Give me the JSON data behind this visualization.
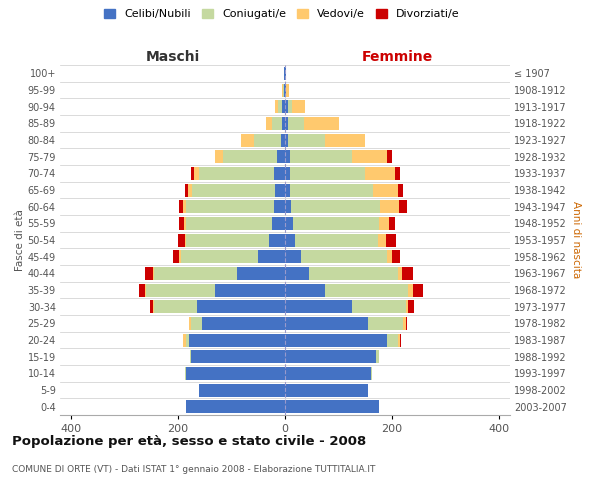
{
  "age_groups": [
    "0-4",
    "5-9",
    "10-14",
    "15-19",
    "20-24",
    "25-29",
    "30-34",
    "35-39",
    "40-44",
    "45-49",
    "50-54",
    "55-59",
    "60-64",
    "65-69",
    "70-74",
    "75-79",
    "80-84",
    "85-89",
    "90-94",
    "95-99",
    "100+"
  ],
  "birth_years": [
    "2003-2007",
    "1998-2002",
    "1993-1997",
    "1988-1992",
    "1983-1987",
    "1978-1982",
    "1973-1977",
    "1968-1972",
    "1963-1967",
    "1958-1962",
    "1953-1957",
    "1948-1952",
    "1943-1947",
    "1938-1942",
    "1933-1937",
    "1928-1932",
    "1923-1927",
    "1918-1922",
    "1913-1917",
    "1908-1912",
    "≤ 1907"
  ],
  "maschi": {
    "celibi": [
      185,
      160,
      185,
      175,
      180,
      155,
      165,
      130,
      90,
      50,
      30,
      25,
      20,
      18,
      20,
      15,
      8,
      5,
      5,
      2,
      2
    ],
    "coniugati": [
      0,
      0,
      2,
      2,
      5,
      20,
      80,
      130,
      155,
      145,
      155,
      160,
      165,
      155,
      140,
      100,
      50,
      20,
      8,
      2,
      0
    ],
    "vedovi": [
      0,
      0,
      0,
      0,
      5,
      5,
      2,
      2,
      2,
      2,
      2,
      3,
      5,
      8,
      10,
      15,
      25,
      10,
      5,
      2,
      0
    ],
    "divorziati": [
      0,
      0,
      0,
      0,
      0,
      0,
      5,
      10,
      15,
      12,
      12,
      10,
      8,
      5,
      5,
      0,
      0,
      0,
      0,
      0,
      0
    ]
  },
  "femmine": {
    "nubili": [
      175,
      155,
      160,
      170,
      190,
      155,
      125,
      75,
      45,
      30,
      18,
      15,
      12,
      10,
      10,
      10,
      5,
      5,
      5,
      2,
      2
    ],
    "coniugate": [
      0,
      0,
      2,
      5,
      20,
      65,
      100,
      155,
      165,
      160,
      155,
      160,
      165,
      155,
      140,
      115,
      70,
      30,
      8,
      0,
      0
    ],
    "vedove": [
      0,
      0,
      0,
      0,
      5,
      5,
      5,
      8,
      8,
      10,
      15,
      20,
      35,
      45,
      55,
      65,
      75,
      65,
      25,
      5,
      0
    ],
    "divorziate": [
      0,
      0,
      0,
      0,
      2,
      2,
      10,
      20,
      20,
      15,
      20,
      10,
      15,
      10,
      10,
      10,
      0,
      0,
      0,
      0,
      0
    ]
  },
  "colors": {
    "celibi": "#4472c4",
    "coniugati": "#c5d9a0",
    "vedovi": "#ffc96e",
    "divorziati": "#cc0000"
  },
  "title": "Popolazione per età, sesso e stato civile - 2008",
  "subtitle": "COMUNE DI ORTE (VT) - Dati ISTAT 1° gennaio 2008 - Elaborazione TUTTITALIA.IT",
  "xlabel_maschi": "Maschi",
  "xlabel_femmine": "Femmine",
  "ylabel_left": "Fasce di età",
  "ylabel_right": "Anni di nascita",
  "xlim": 420,
  "bg_color": "#ffffff",
  "grid_color": "#cccccc"
}
